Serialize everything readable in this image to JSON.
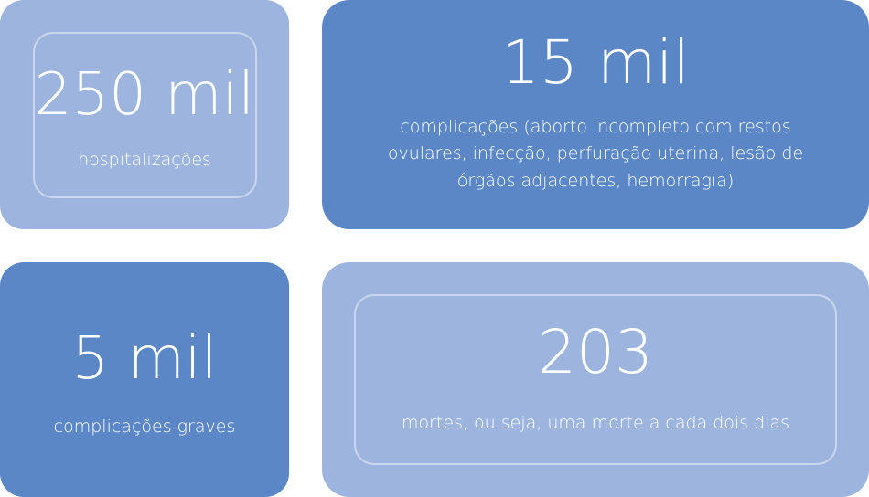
{
  "cards": [
    {
      "value": "250 mil",
      "description": "hospitalizações"
    },
    {
      "value": "15 mil",
      "description": "complicações (aborto incompleto com restos ovulares, infecção, perfuração uterina, lesão de órgãos adjacentes, hemorragia)"
    },
    {
      "value": "5 mil",
      "description": "complicações graves"
    },
    {
      "value": "203",
      "description": "mortes, ou seja, uma morte a cada dois dias"
    }
  ],
  "colors": {
    "light_card": "#9db5de",
    "dark_card": "#5b87c6",
    "text": "#ffffff"
  }
}
